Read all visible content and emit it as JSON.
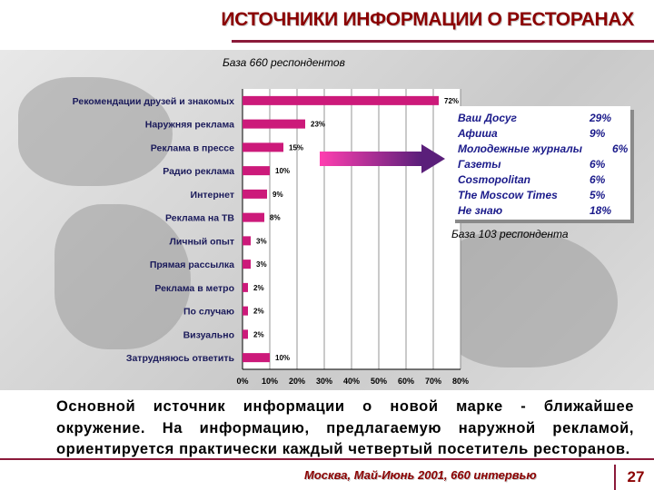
{
  "title": "ИСТОЧНИКИ ИНФОРМАЦИИ О РЕСТОРАНАХ",
  "base_main": "База 660 респондентов",
  "base_secondary": "База 103 респондента",
  "chart_data": {
    "type": "bar",
    "orientation": "horizontal",
    "categories": [
      "Рекомендации друзей и знакомых",
      "Наружняя реклама",
      "Реклама в прессе",
      "Радио реклама",
      "Интернет",
      "Реклама на ТВ",
      "Личный опыт",
      "Прямая рассылка",
      "Реклама в метро",
      "По случаю",
      "Визуально",
      "Затрудняюсь ответить"
    ],
    "values": [
      72,
      23,
      15,
      10,
      9,
      8,
      3,
      3,
      2,
      2,
      2,
      10
    ],
    "data_labels": [
      "72%",
      "23%",
      "15%",
      "10%",
      "9%",
      "8%",
      "3%",
      "3%",
      "2%",
      "2%",
      "2%",
      "10%"
    ],
    "xlim": [
      0,
      80
    ],
    "xticks": [
      "0%",
      "10%",
      "20%",
      "30%",
      "40%",
      "50%",
      "60%",
      "70%",
      "80%"
    ],
    "grid": true,
    "bar_color": "#cc1a7a"
  },
  "press_breakdown": [
    {
      "name": "Ваш Досуг",
      "value": "29%"
    },
    {
      "name": "Афиша",
      "value": "9%"
    },
    {
      "name": "Молодежные журналы",
      "value": "6%"
    },
    {
      "name": "Газеты",
      "value": "6%"
    },
    {
      "name": "Cosmopolitan",
      "value": "6%"
    },
    {
      "name": "The Moscow Times",
      "value": "5%"
    },
    {
      "name": "Не знаю",
      "value": "18%"
    }
  ],
  "body_text": "Основной источник информации о новой марке - ближайшее окружение. На информацию, предлагаемую наружной рекламой, ориентируется практически каждый четвертый посетитель ресторанов.",
  "footer": "Москва, Май-Июнь 2001,  660 интервью",
  "page_number": "27",
  "colors": {
    "accent": "#8b0000",
    "rule": "#8b1a3a",
    "legend_text": "#1a1a8a",
    "arrow_start": "#ff3fb0",
    "arrow_end": "#5a1f7a"
  }
}
